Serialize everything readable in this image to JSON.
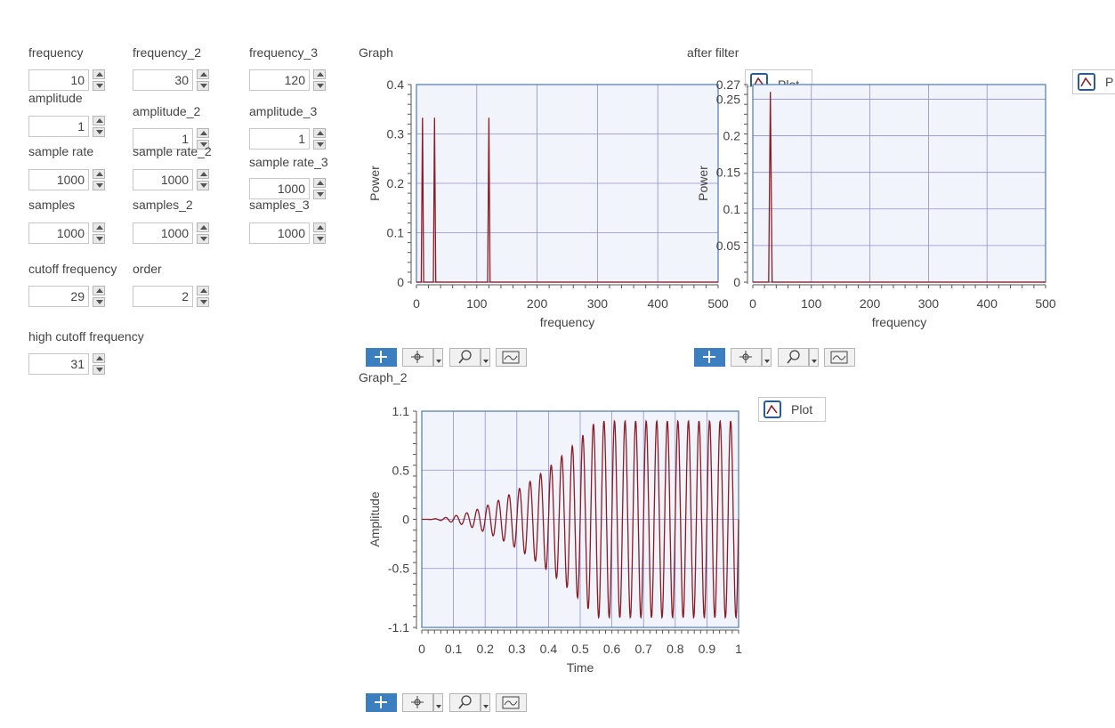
{
  "controls": {
    "frequency": {
      "label": "frequency",
      "value": "10"
    },
    "amplitude": {
      "label": "amplitude",
      "value": "1"
    },
    "sample_rate": {
      "label": "sample rate",
      "value": "1000"
    },
    "samples": {
      "label": "samples",
      "value": "1000"
    },
    "cutoff_frequency": {
      "label": "cutoff frequency",
      "value": "29"
    },
    "high_cutoff_frequency": {
      "label": "high cutoff frequency",
      "value": "31"
    },
    "frequency_2": {
      "label": "frequency_2",
      "value": "30"
    },
    "amplitude_2": {
      "label": "amplitude_2",
      "value": "1"
    },
    "sample_rate_2": {
      "label": "sample rate_2",
      "value": "1000"
    },
    "samples_2": {
      "label": "samples_2",
      "value": "1000"
    },
    "order": {
      "label": "order",
      "value": "2"
    },
    "frequency_3": {
      "label": "frequency_3",
      "value": "120"
    },
    "amplitude_3": {
      "label": "amplitude_3",
      "value": "1"
    },
    "sample_rate_3": {
      "label": "sample rate_3",
      "value": "1000"
    },
    "samples_3": {
      "label": "samples_3",
      "value": "1000"
    }
  },
  "graphs": {
    "graph": {
      "title": "Graph"
    },
    "after_filter": {
      "title": "after filter",
      "legend": "Plot",
      "legend_right": "P"
    },
    "graph_2": {
      "title": "Graph_2",
      "legend": "Plot"
    }
  },
  "colors": {
    "plot_line": "#8a1c24",
    "grid": "#8f8fd6",
    "plot_bg": "#f2f4fb",
    "frame": "#4a7ab5",
    "tool_selected": "#3c7fc1"
  },
  "toolbar_icons": [
    "cursor-icon",
    "pan-icon",
    "zoom-icon",
    "autoscale-icon"
  ],
  "chart_data": [
    {
      "type": "line",
      "name": "Graph",
      "xlabel": "frequency",
      "ylabel": "Power",
      "xlim": [
        0,
        500
      ],
      "ylim": [
        0,
        0.4
      ],
      "xticks": [
        0,
        100,
        200,
        300,
        400,
        500
      ],
      "yticks": [
        "0",
        "0.1",
        "0.2",
        "0.3",
        "0.4"
      ],
      "grid": true,
      "series": [
        {
          "x": [
            0,
            8,
            10,
            12,
            28,
            30,
            32,
            118,
            120,
            122,
            500
          ],
          "y": [
            0,
            0,
            0.333,
            0,
            0,
            0.333,
            0,
            0,
            0.333,
            0,
            0
          ]
        }
      ]
    },
    {
      "type": "line",
      "name": "after filter",
      "xlabel": "frequency",
      "ylabel": "Power",
      "xlim": [
        0,
        500
      ],
      "ylim": [
        0,
        0.27
      ],
      "xticks": [
        0,
        100,
        200,
        300,
        400,
        500
      ],
      "yticks": [
        "0",
        "0.05",
        "0.1",
        "0.15",
        "0.2",
        "0.25",
        "0.27"
      ],
      "grid": true,
      "series": [
        {
          "x": [
            0,
            27,
            30,
            33,
            500
          ],
          "y": [
            0,
            0,
            0.26,
            0,
            0
          ]
        }
      ]
    },
    {
      "type": "line",
      "name": "Graph_2",
      "xlabel": "Time",
      "ylabel": "Amplitude",
      "xlim": [
        0,
        1
      ],
      "ylim": [
        -1.1,
        1.1
      ],
      "xticks": [
        "0",
        "0.1",
        "0.2",
        "0.3",
        "0.4",
        "0.5",
        "0.6",
        "0.7",
        "0.8",
        "0.9",
        "1"
      ],
      "yticks": [
        "-1.1",
        "-0.5",
        "0",
        "0.5",
        "1.1"
      ],
      "grid": true,
      "signal": {
        "frequency": 30,
        "steady_amplitude": 1.0,
        "settle_time": 0.55,
        "samples": 1000
      }
    }
  ]
}
